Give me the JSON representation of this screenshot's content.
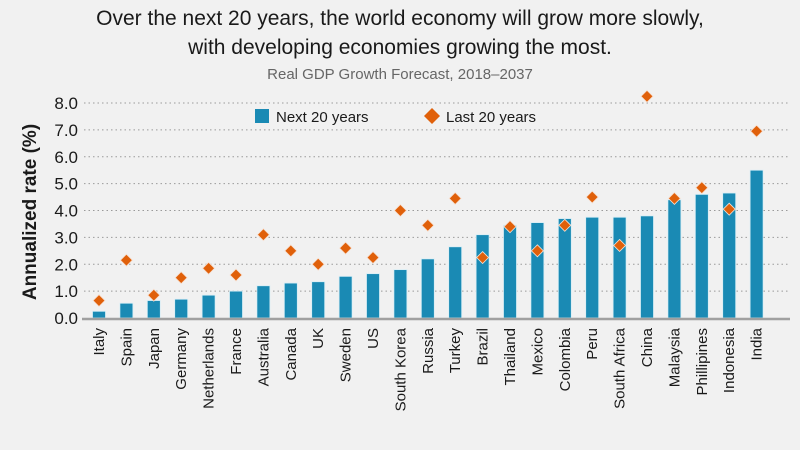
{
  "chart_data": {
    "type": "bar",
    "title": "Over the next 20 years, the world economy will grow more slowly, with developing economies growing the most.",
    "title_lines": [
      "Over the next 20 years, the world economy will grow more slowly,",
      "with developing economies growing the most."
    ],
    "subtitle": "Real GDP Growth Forecast, 2018–2037",
    "xlabel": "",
    "ylabel": "Annualized rate (%)",
    "ylim": [
      0,
      8
    ],
    "yticks": [
      "0.0",
      "1.0",
      "2.0",
      "3.0",
      "4.0",
      "5.0",
      "6.0",
      "7.0",
      "8.0"
    ],
    "grid": true,
    "legend_position": "top-center",
    "categories": [
      "Italy",
      "Spain",
      "Japan",
      "Germany",
      "Netherlands",
      "France",
      "Australia",
      "Canada",
      "UK",
      "Sweden",
      "US",
      "South Korea",
      "Russia",
      "Turkey",
      "Brazil",
      "Thailand",
      "Mexico",
      "Colombia",
      "Peru",
      "South Africa",
      "China",
      "Malaysia",
      "Phillipines",
      "Indonesia",
      "India"
    ],
    "series": [
      {
        "name": "Next 20 years",
        "marker": "bar",
        "color": "#1a8ab4",
        "values": [
          0.25,
          0.55,
          0.65,
          0.7,
          0.85,
          1.0,
          1.2,
          1.3,
          1.35,
          1.55,
          1.65,
          1.8,
          2.2,
          2.65,
          3.1,
          3.45,
          3.55,
          3.7,
          3.75,
          3.75,
          3.8,
          4.4,
          4.6,
          4.65,
          5.5
        ]
      },
      {
        "name": "Last 20 years",
        "marker": "diamond",
        "color": "#e0600a",
        "values": [
          0.65,
          2.15,
          0.85,
          1.5,
          1.85,
          1.6,
          3.1,
          2.5,
          2.0,
          2.6,
          2.25,
          4.0,
          3.45,
          4.45,
          2.25,
          3.4,
          2.5,
          3.45,
          4.5,
          2.7,
          8.25,
          4.45,
          4.85,
          4.05,
          6.95
        ]
      }
    ]
  }
}
